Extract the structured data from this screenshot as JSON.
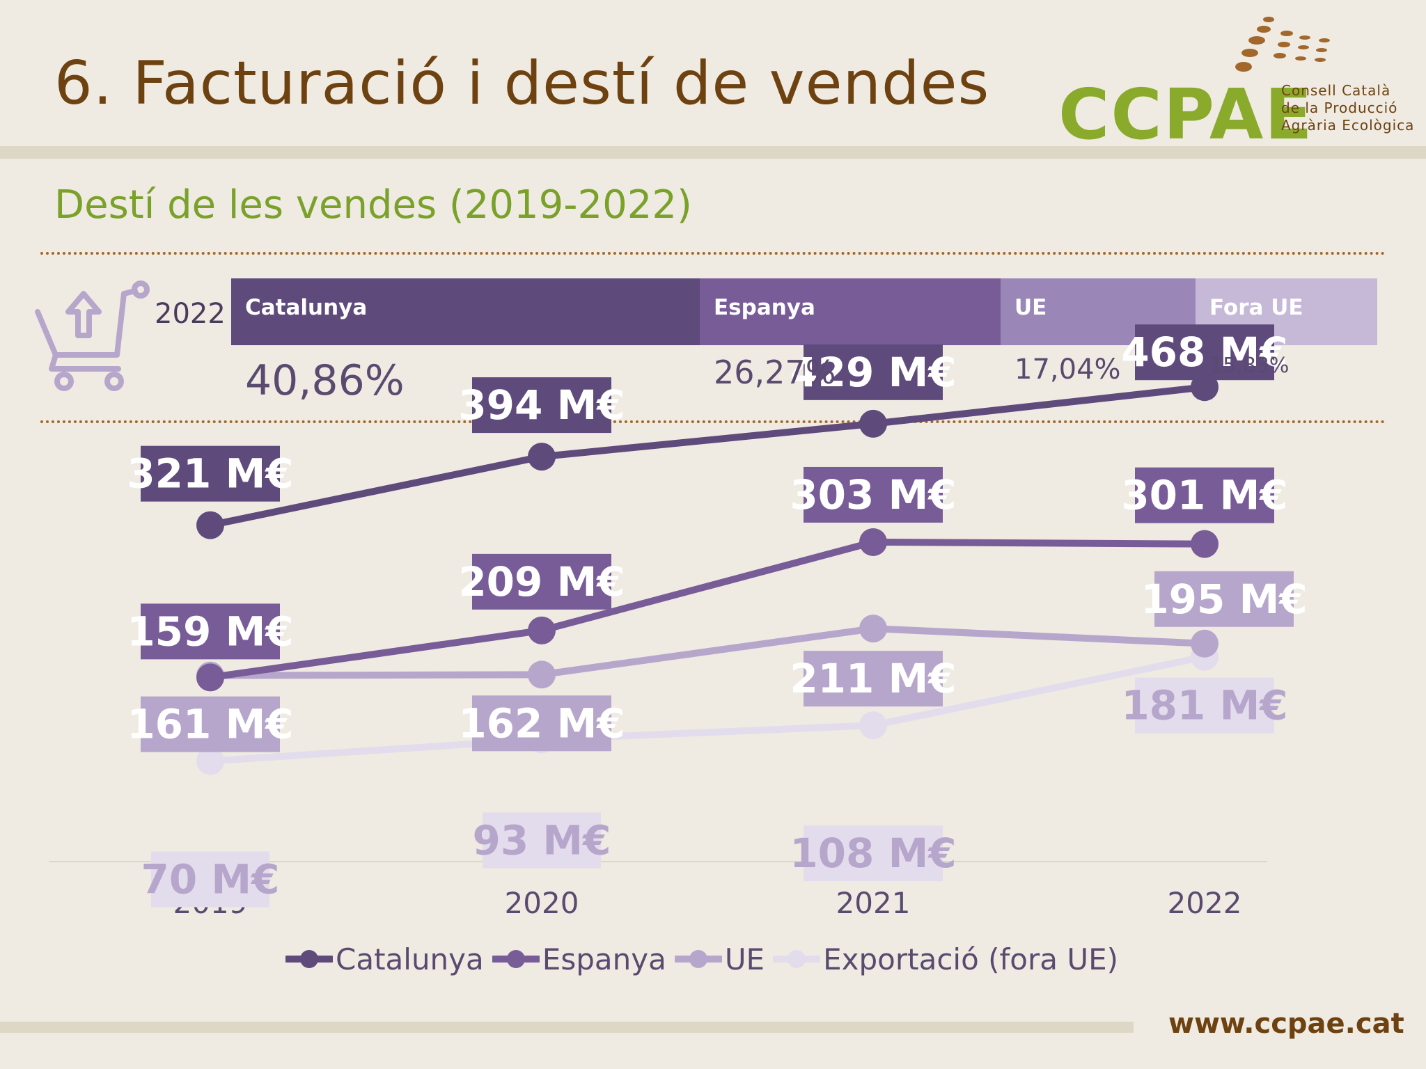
{
  "header": {
    "title": "6.  Facturació i destí de vendes",
    "logo": {
      "name": "CCPAE",
      "line1": "Consell Català",
      "line2": "de la Producció",
      "line3": "Agrària Ecològica"
    }
  },
  "subtitle": "Destí de les vendes (2019-2022)",
  "share": {
    "year": "2022",
    "icon": "shopping-cart-upload-icon",
    "segments": [
      {
        "label": "Catalunya",
        "pct": "40,86%",
        "value": 40.86,
        "color": "#5f4a7c"
      },
      {
        "label": "Espanya",
        "pct": "26,27%",
        "value": 26.27,
        "color": "#785c98"
      },
      {
        "label": "UE",
        "pct": "17,04%",
        "value": 17.04,
        "color": "#9a87b8"
      },
      {
        "label": "Fora UE",
        "pct": "15,83%",
        "value": 15.83,
        "color": "#c5b9d7"
      }
    ]
  },
  "chart_data": {
    "type": "line",
    "categories": [
      "2019",
      "2020",
      "2021",
      "2022"
    ],
    "series": [
      {
        "name": "Catalunya",
        "values": [
          321,
          394,
          429,
          468
        ],
        "labels": [
          "321 M€",
          "394 M€",
          "429 M€",
          "468 M€"
        ],
        "color": "#5f4a7c"
      },
      {
        "name": "Espanya",
        "values": [
          159,
          209,
          303,
          301
        ],
        "labels": [
          "159 M€",
          "209 M€",
          "303 M€",
          "301 M€"
        ],
        "color": "#785c98"
      },
      {
        "name": "UE",
        "values": [
          161,
          162,
          211,
          195
        ],
        "labels": [
          "161 M€",
          "162 M€",
          "211 M€",
          "195 M€"
        ],
        "color": "#b7a6cc"
      },
      {
        "name": "Exportació (fora UE)",
        "values": [
          70,
          93,
          108,
          181
        ],
        "labels": [
          "70 M€",
          "93 M€",
          "108 M€",
          "181 M€"
        ],
        "color": "#e3dcec"
      }
    ],
    "legend_position": "bottom",
    "grid": false
  },
  "footer": {
    "url": "www.ccpae.cat"
  }
}
